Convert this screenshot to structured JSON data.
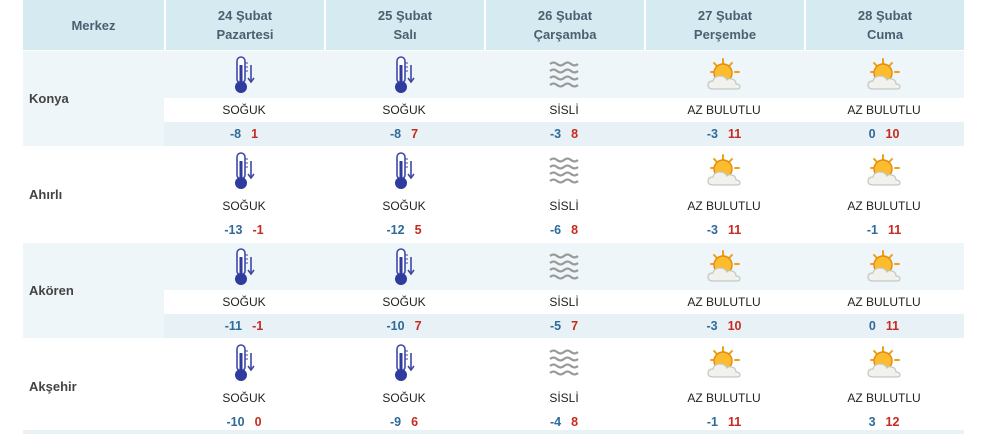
{
  "header": {
    "merkez": "Merkez",
    "days": [
      {
        "date": "24 Şubat",
        "weekday": "Pazartesi"
      },
      {
        "date": "25 Şubat",
        "weekday": "Salı"
      },
      {
        "date": "26 Şubat",
        "weekday": "Çarşamba"
      },
      {
        "date": "27 Şubat",
        "weekday": "Perşembe"
      },
      {
        "date": "28 Şubat",
        "weekday": "Cuma"
      }
    ]
  },
  "rows": [
    {
      "city": "Konya",
      "days": [
        {
          "icon": "thermometer-icon",
          "cond": "SOĞUK",
          "min": "-8",
          "max": "1"
        },
        {
          "icon": "thermometer-icon",
          "cond": "SOĞUK",
          "min": "-8",
          "max": "7"
        },
        {
          "icon": "fog-icon",
          "cond": "SİSLİ",
          "min": "-3",
          "max": "8"
        },
        {
          "icon": "partly-cloudy-icon",
          "cond": "AZ BULUTLU",
          "min": "-3",
          "max": "11"
        },
        {
          "icon": "partly-cloudy-icon",
          "cond": "AZ BULUTLU",
          "min": "0",
          "max": "10"
        }
      ]
    },
    {
      "city": "Ahırlı",
      "days": [
        {
          "icon": "thermometer-icon",
          "cond": "SOĞUK",
          "min": "-13",
          "max": "-1"
        },
        {
          "icon": "thermometer-icon",
          "cond": "SOĞUK",
          "min": "-12",
          "max": "5"
        },
        {
          "icon": "fog-icon",
          "cond": "SİSLİ",
          "min": "-6",
          "max": "8"
        },
        {
          "icon": "partly-cloudy-icon",
          "cond": "AZ BULUTLU",
          "min": "-3",
          "max": "11"
        },
        {
          "icon": "partly-cloudy-icon",
          "cond": "AZ BULUTLU",
          "min": "-1",
          "max": "11"
        }
      ]
    },
    {
      "city": "Akören",
      "days": [
        {
          "icon": "thermometer-icon",
          "cond": "SOĞUK",
          "min": "-11",
          "max": "-1"
        },
        {
          "icon": "thermometer-icon",
          "cond": "SOĞUK",
          "min": "-10",
          "max": "7"
        },
        {
          "icon": "fog-icon",
          "cond": "SİSLİ",
          "min": "-5",
          "max": "7"
        },
        {
          "icon": "partly-cloudy-icon",
          "cond": "AZ BULUTLU",
          "min": "-3",
          "max": "10"
        },
        {
          "icon": "partly-cloudy-icon",
          "cond": "AZ BULUTLU",
          "min": "0",
          "max": "11"
        }
      ]
    },
    {
      "city": "Akşehir",
      "days": [
        {
          "icon": "thermometer-icon",
          "cond": "SOĞUK",
          "min": "-10",
          "max": "0"
        },
        {
          "icon": "thermometer-icon",
          "cond": "SOĞUK",
          "min": "-9",
          "max": "6"
        },
        {
          "icon": "fog-icon",
          "cond": "SİSLİ",
          "min": "-4",
          "max": "8"
        },
        {
          "icon": "partly-cloudy-icon",
          "cond": "AZ BULUTLU",
          "min": "-1",
          "max": "11"
        },
        {
          "icon": "partly-cloudy-icon",
          "cond": "AZ BULUTLU",
          "min": "3",
          "max": "12"
        }
      ]
    }
  ],
  "colors": {
    "header_bg": "#d6eaf2",
    "row_alt_bg": "#eef6f9",
    "min_temp": "#2e6a9a",
    "max_temp": "#c62a1f"
  }
}
